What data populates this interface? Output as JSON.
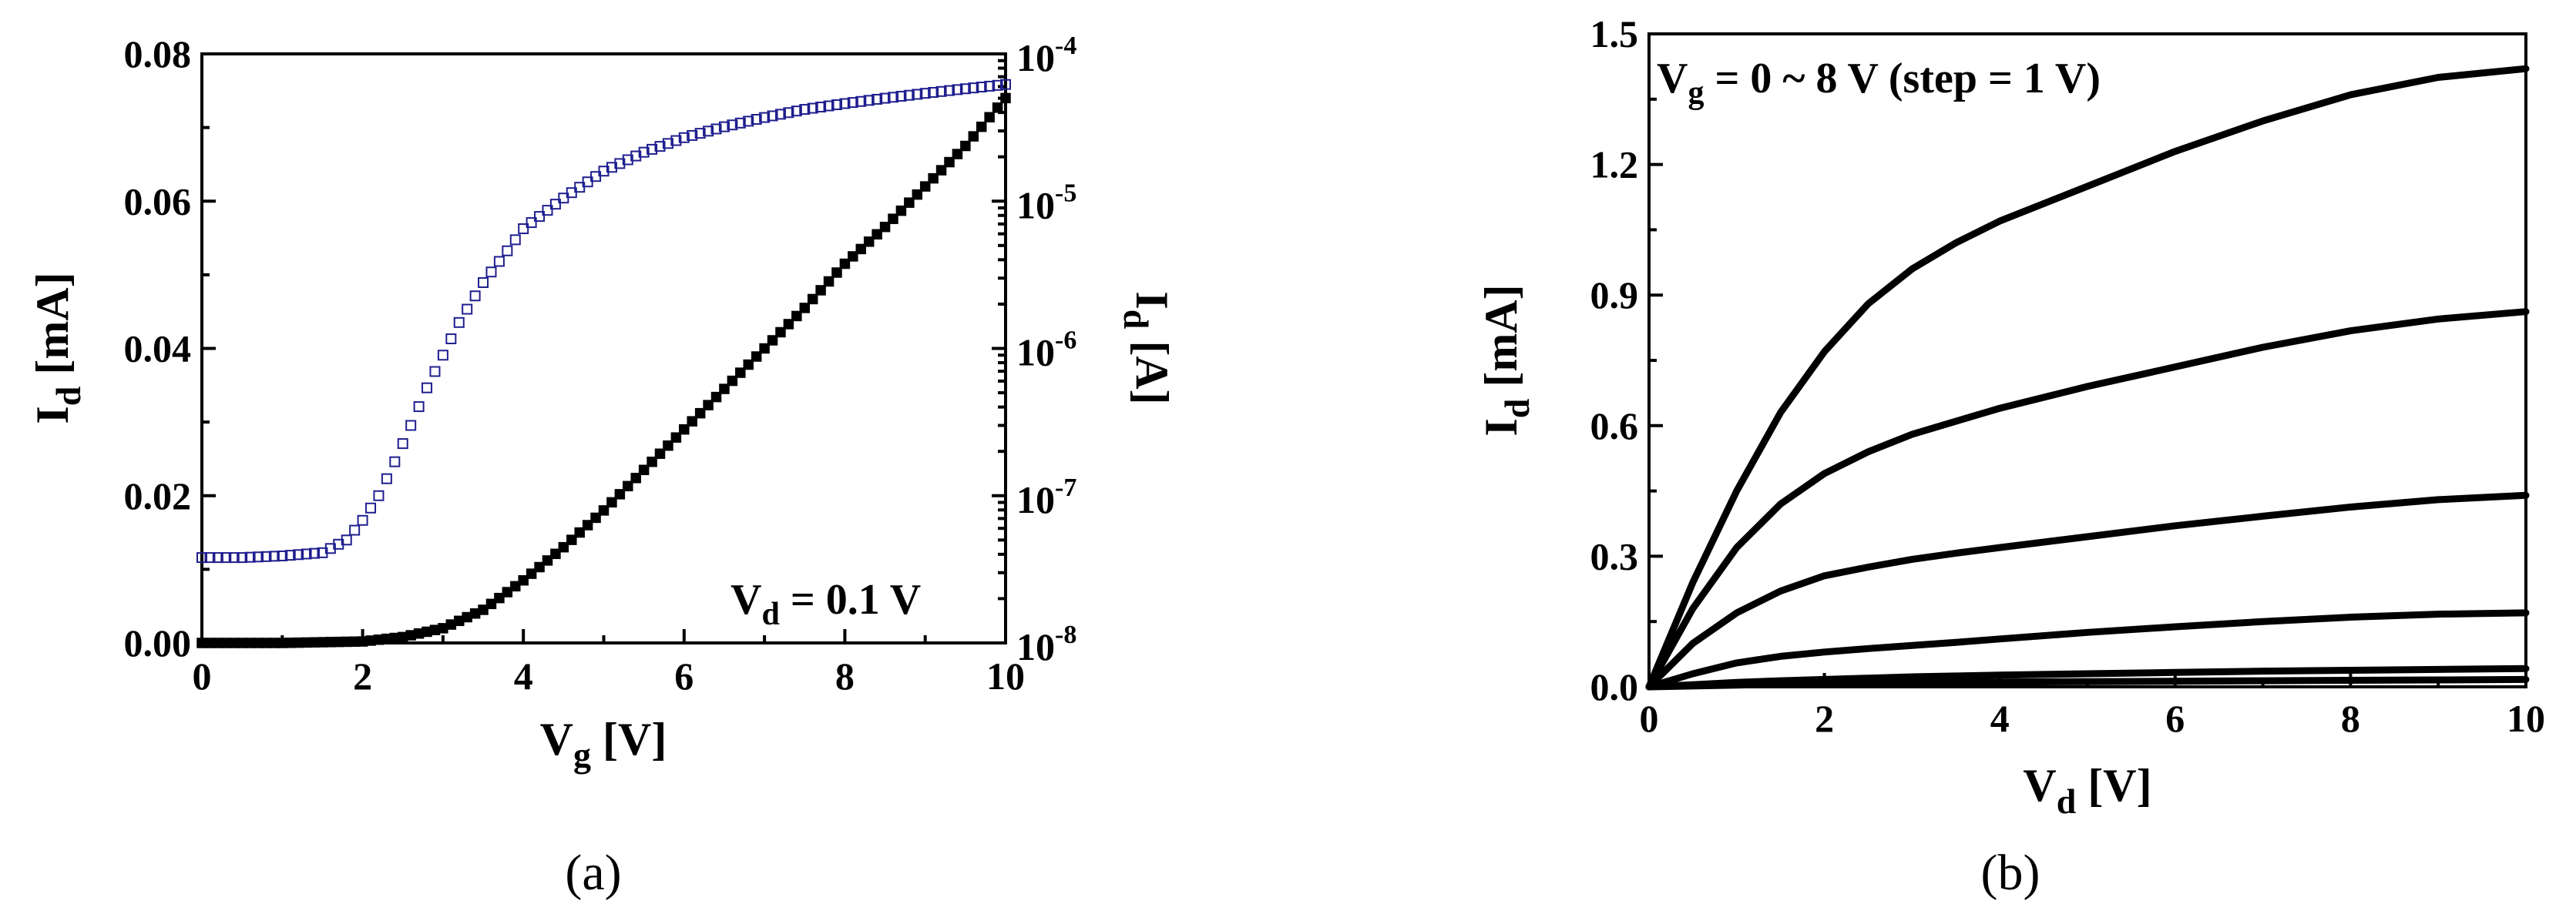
{
  "chart_data": [
    {
      "panel_label": "(a)",
      "type": "scatter",
      "xlabel": "V",
      "xlabel_sub": "g",
      "xlabel_unit": " [V]",
      "ylabel": "I",
      "ylabel_sub": "d",
      "ylabel_unit": " [mA]",
      "ylabel_right": "I",
      "ylabel_right_sub": "d",
      "ylabel_right_unit": " [A]",
      "xlim": [
        0,
        10
      ],
      "ylim": [
        0,
        0.08
      ],
      "ylim_right_log": [
        1e-08,
        0.0001
      ],
      "xticks": [
        "0",
        "2",
        "4",
        "6",
        "8",
        "10"
      ],
      "yticks": [
        "0.00",
        "0.02",
        "0.04",
        "0.06",
        "0.08"
      ],
      "yticks_right": [
        {
          "base": "10",
          "exp": "-8"
        },
        {
          "base": "10",
          "exp": "-7"
        },
        {
          "base": "10",
          "exp": "-6"
        },
        {
          "base": "10",
          "exp": "-5"
        },
        {
          "base": "10",
          "exp": "-4"
        }
      ],
      "annotation": {
        "main": "V",
        "sub": "d",
        "rest": " = 0.1 V"
      },
      "series": [
        {
          "axis": "left-linear",
          "marker": "filled-square",
          "color": "#000000",
          "x": [
            0,
            1,
            2,
            2.5,
            3,
            3.5,
            4,
            4.5,
            5,
            5.5,
            6,
            6.5,
            7,
            7.5,
            8,
            8.5,
            9,
            9.5,
            10
          ],
          "y": [
            0.0,
            0.0,
            0.0002,
            0.0008,
            0.002,
            0.0045,
            0.0085,
            0.013,
            0.018,
            0.0235,
            0.029,
            0.0345,
            0.04,
            0.0455,
            0.0515,
            0.0565,
            0.062,
            0.0675,
            0.074
          ]
        },
        {
          "axis": "right-log",
          "marker": "open-square",
          "color": "#1f1f8f",
          "x": [
            0,
            0.5,
            1,
            1.5,
            1.8,
            2,
            2.2,
            2.4,
            2.6,
            2.8,
            3,
            3.2,
            3.5,
            3.8,
            4,
            4.5,
            5,
            5.5,
            6,
            6.5,
            7,
            7.5,
            8,
            8.5,
            9,
            9.5,
            10
          ],
          "y": [
            3.8e-08,
            3.8e-08,
            3.9e-08,
            4.1e-08,
            5e-08,
            6.8e-08,
            1e-07,
            1.7e-07,
            3e-07,
            5.4e-07,
            9e-07,
            1.5e-06,
            2.8e-06,
            4.6e-06,
            6.5e-06,
            1.05e-05,
            1.6e-05,
            2.15e-05,
            2.7e-05,
            3.2e-05,
            3.7e-05,
            4.2e-05,
            4.6e-05,
            5e-05,
            5.4e-05,
            5.8e-05,
            6.2e-05
          ]
        }
      ]
    },
    {
      "panel_label": "(b)",
      "type": "line",
      "xlabel": "V",
      "xlabel_sub": "d",
      "xlabel_unit": " [V]",
      "ylabel": "I",
      "ylabel_sub": "d",
      "ylabel_unit": " [mA]",
      "xlim": [
        0,
        10
      ],
      "ylim": [
        0,
        1.5
      ],
      "xticks": [
        "0",
        "2",
        "4",
        "6",
        "8",
        "10"
      ],
      "yticks": [
        "0.0",
        "0.3",
        "0.6",
        "0.9",
        "1.2",
        "1.5"
      ],
      "annotation": {
        "main": "V",
        "sub": "g",
        "rest": " = 0 ~ 8 V (step = 1 V)"
      },
      "x": [
        0,
        0.5,
        1,
        1.5,
        2,
        2.5,
        3,
        3.5,
        4,
        5,
        6,
        7,
        8,
        9,
        10
      ],
      "series": [
        {
          "values": [
            0,
            0.002,
            0.004,
            0.006,
            0.007,
            0.008,
            0.009,
            0.01,
            0.011,
            0.012,
            0.013,
            0.014,
            0.015,
            0.016,
            0.017
          ]
        },
        {
          "values": [
            0,
            0.005,
            0.01,
            0.014,
            0.017,
            0.02,
            0.023,
            0.025,
            0.027,
            0.03,
            0.033,
            0.036,
            0.038,
            0.04,
            0.042
          ]
        },
        {
          "values": [
            0,
            0.03,
            0.055,
            0.07,
            0.08,
            0.088,
            0.095,
            0.102,
            0.11,
            0.125,
            0.138,
            0.15,
            0.16,
            0.167,
            0.17
          ]
        },
        {
          "values": [
            0,
            0.1,
            0.17,
            0.22,
            0.255,
            0.275,
            0.293,
            0.307,
            0.32,
            0.345,
            0.37,
            0.392,
            0.413,
            0.43,
            0.44
          ]
        },
        {
          "values": [
            0,
            0.18,
            0.32,
            0.42,
            0.49,
            0.54,
            0.58,
            0.61,
            0.64,
            0.69,
            0.735,
            0.78,
            0.818,
            0.845,
            0.862
          ]
        },
        {
          "values": [
            0,
            0.24,
            0.45,
            0.63,
            0.77,
            0.88,
            0.96,
            1.02,
            1.07,
            1.15,
            1.23,
            1.3,
            1.36,
            1.4,
            1.42
          ]
        }
      ]
    }
  ]
}
